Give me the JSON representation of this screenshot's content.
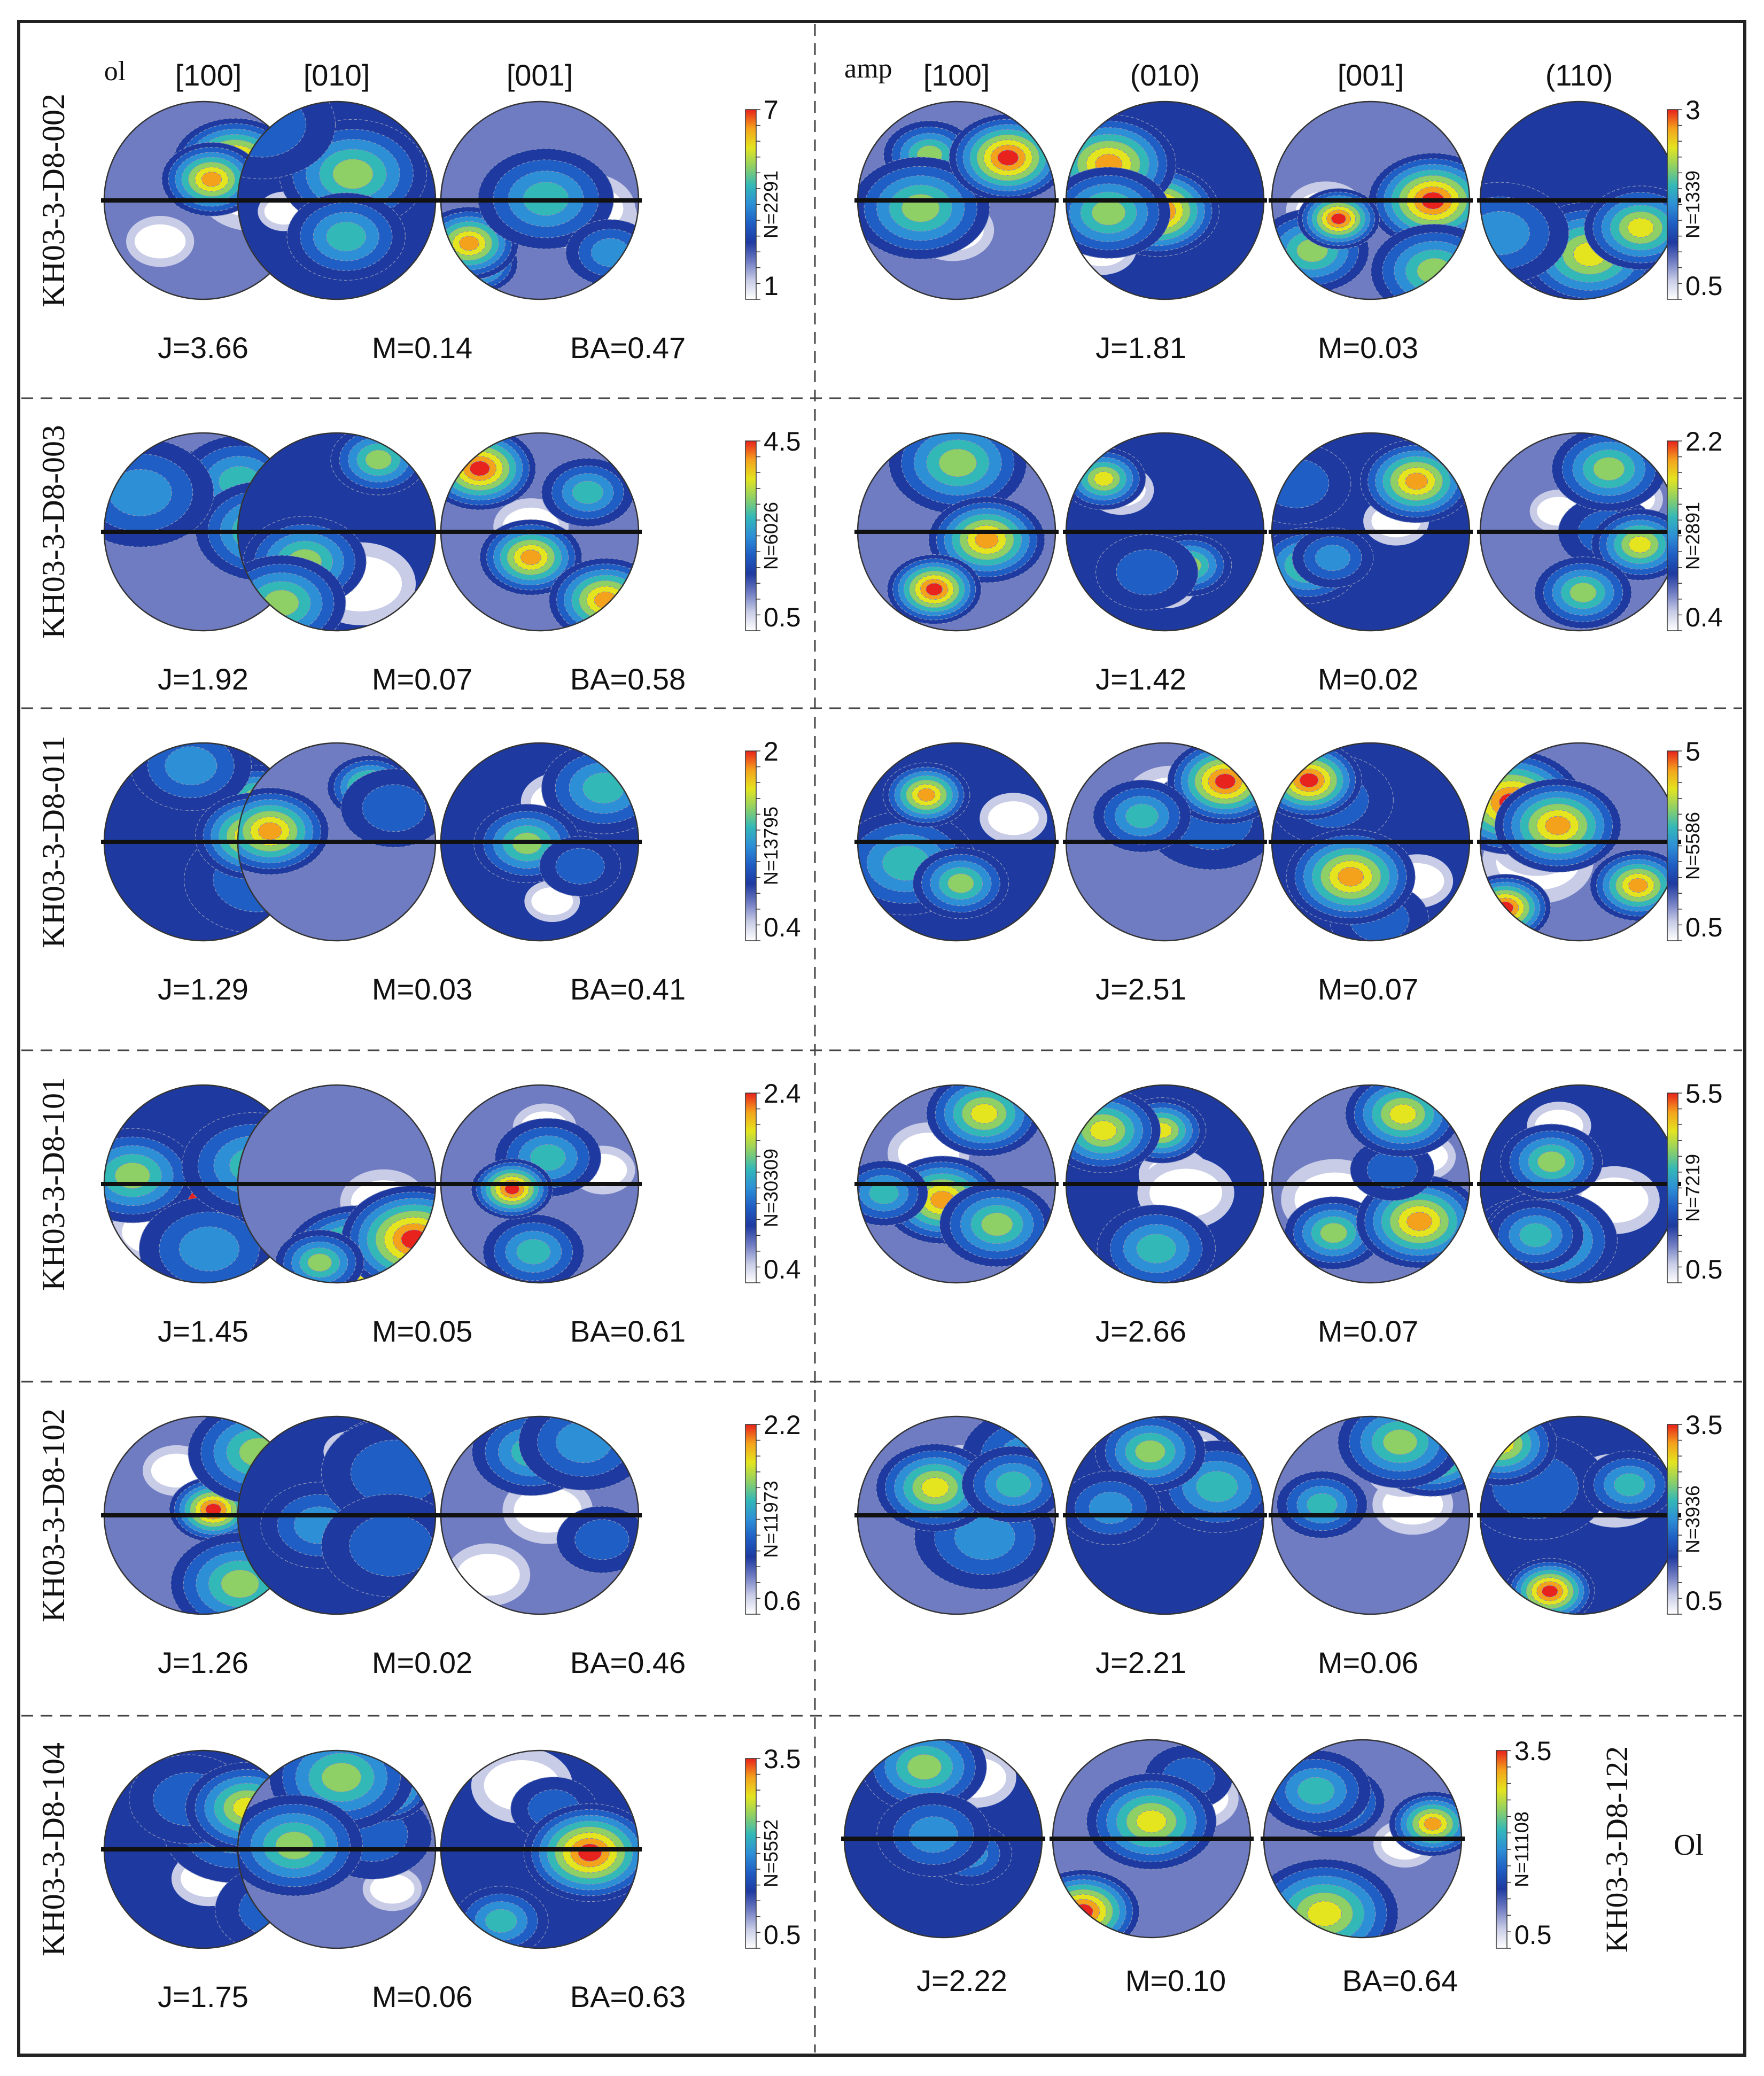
{
  "colors": {
    "density_ramp": [
      "#ffffff",
      "#c8cce6",
      "#6f7cc2",
      "#1e3aa0",
      "#1f5ec4",
      "#2d8fd6",
      "#33b8b8",
      "#8fd066",
      "#e4e41f",
      "#f4a21c",
      "#e8221c"
    ]
  },
  "rows": [
    {
      "sample": "KH03-3-D8-002",
      "ol": {
        "phase_label": "ol",
        "headers": [
          "[100]",
          "[010]",
          "[001]"
        ],
        "colorbar": {
          "max": "7",
          "min": "1",
          "n": "N=2291"
        },
        "stats": [
          "J=3.66",
          "M=0.14",
          "BA=0.47"
        ]
      },
      "amp": {
        "phase_label": "amp",
        "headers": [
          "[100]",
          "(010)",
          "[001]",
          "(110)"
        ],
        "colorbar": {
          "max": "3",
          "min": "0.5",
          "n": "N=1339"
        },
        "stats": [
          "J=1.81",
          "M=0.03"
        ]
      }
    },
    {
      "sample": "KH03-3-D8-003",
      "ol": {
        "colorbar": {
          "max": "4.5",
          "min": "0.5",
          "n": "N=6026"
        },
        "stats": [
          "J=1.92",
          "M=0.07",
          "BA=0.58"
        ]
      },
      "amp": {
        "colorbar": {
          "max": "2.2",
          "min": "0.4",
          "n": "N=2891"
        },
        "stats": [
          "J=1.42",
          "M=0.02"
        ]
      }
    },
    {
      "sample": "KH03-3-D8-011",
      "ol": {
        "colorbar": {
          "max": "2",
          "min": "0.4",
          "n": "N=13795"
        },
        "stats": [
          "J=1.29",
          "M=0.03",
          "BA=0.41"
        ]
      },
      "amp": {
        "colorbar": {
          "max": "5",
          "min": "0.5",
          "n": "N=5586"
        },
        "stats": [
          "J=2.51",
          "M=0.07"
        ]
      }
    },
    {
      "sample": "KH03-3-D8-101",
      "ol": {
        "colorbar": {
          "max": "2.4",
          "min": "0.4",
          "n": "N=30309"
        },
        "stats": [
          "J=1.45",
          "M=0.05",
          "BA=0.61"
        ]
      },
      "amp": {
        "colorbar": {
          "max": "5.5",
          "min": "0.5",
          "n": "N=7219"
        },
        "stats": [
          "J=2.66",
          "M=0.07"
        ]
      }
    },
    {
      "sample": "KH03-3-D8-102",
      "ol": {
        "colorbar": {
          "max": "2.2",
          "min": "0.6",
          "n": "N=11973"
        },
        "stats": [
          "J=1.26",
          "M=0.02",
          "BA=0.46"
        ]
      },
      "amp": {
        "colorbar": {
          "max": "3.5",
          "min": "0.5",
          "n": "N=3936"
        },
        "stats": [
          "J=2.21",
          "M=0.06"
        ]
      }
    },
    {
      "sample": "KH03-3-D8-104",
      "ol": {
        "colorbar": {
          "max": "3.5",
          "min": "0.5",
          "n": "N=5552"
        },
        "stats": [
          "J=1.75",
          "M=0.06",
          "BA=0.63"
        ]
      },
      "extra": {
        "sample": "KH03-3-D8-122",
        "phase_label": "Ol",
        "colorbar": {
          "max": "3.5",
          "min": "0.5",
          "n": "N=11108"
        },
        "stats": [
          "J=2.22",
          "M=0.10",
          "BA=0.64"
        ]
      }
    }
  ]
}
